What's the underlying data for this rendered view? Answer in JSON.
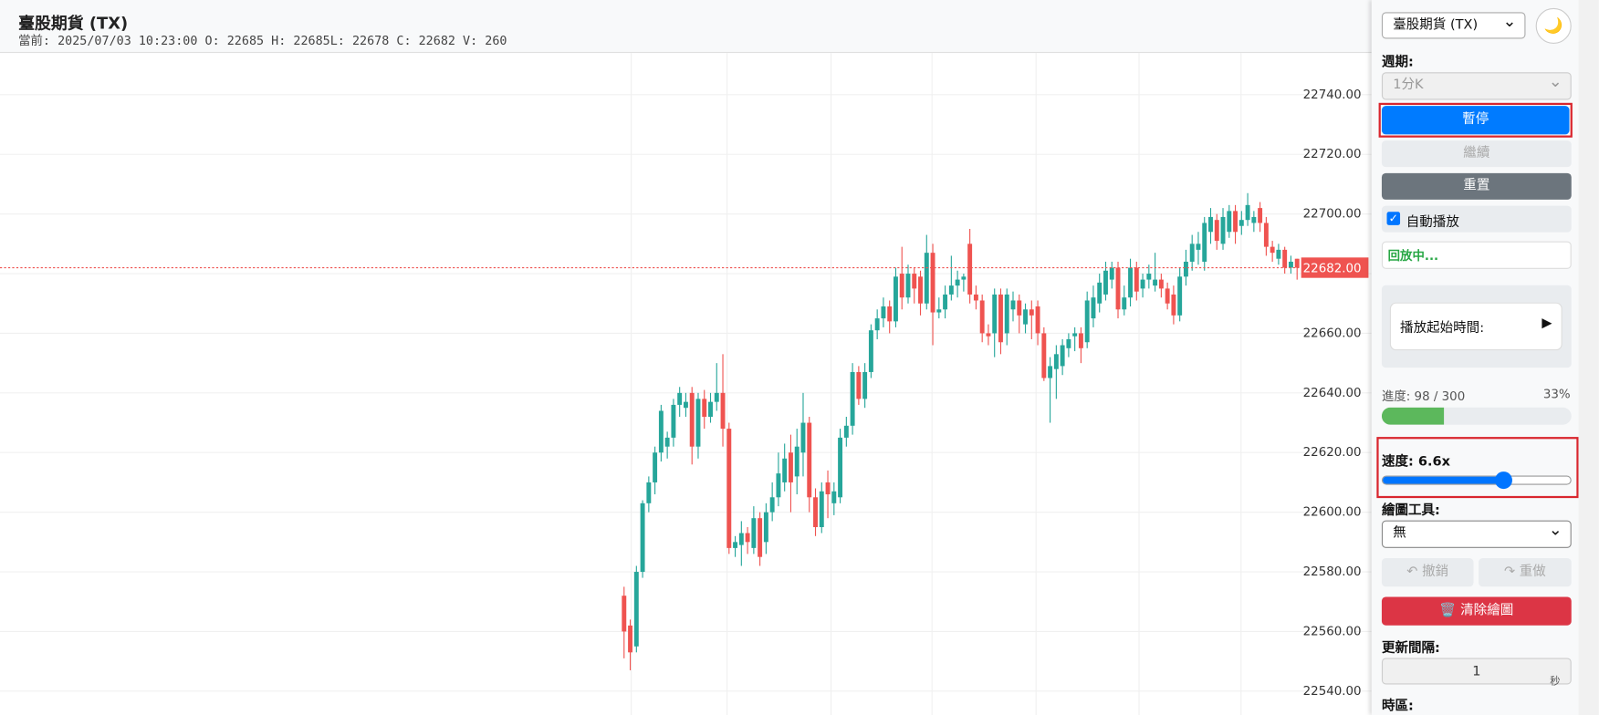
{
  "header": {
    "title": "臺股期貨 (TX)",
    "info": "當前: 2025/07/03 10:23:00 O: 22685 H: 22685L: 22678 C: 22682 V: 260"
  },
  "chart_data": {
    "type": "candlestick",
    "up_color": "#26a69a",
    "down_color": "#ef5350",
    "grid": true,
    "ylim": [
      22532,
      22754
    ],
    "yticks": [
      {
        "value": 22540,
        "label": "22540.00"
      },
      {
        "value": 22560,
        "label": "22560.00"
      },
      {
        "value": 22580,
        "label": "22580.00"
      },
      {
        "value": 22600,
        "label": "22600.00"
      },
      {
        "value": 22620,
        "label": "22620.00"
      },
      {
        "value": 22640,
        "label": "22640.00"
      },
      {
        "value": 22660,
        "label": "22660.00"
      },
      {
        "value": 22680,
        "label": "22680.00"
      },
      {
        "value": 22700,
        "label": "22700.00"
      },
      {
        "value": 22720,
        "label": "22720.00"
      },
      {
        "value": 22740,
        "label": "22740.00"
      }
    ],
    "last_price": 22682,
    "last_price_label": "22682.00",
    "ohlc": [
      [
        22572,
        22575,
        22551,
        22560
      ],
      [
        22562,
        22564,
        22547,
        22553
      ],
      [
        22555,
        22582,
        22553,
        22580
      ],
      [
        22580,
        22604,
        22578,
        22603
      ],
      [
        22603,
        22612,
        22600,
        22610
      ],
      [
        22610,
        22622,
        22606,
        22620
      ],
      [
        22620,
        22636,
        22617,
        22634
      ],
      [
        22622,
        22627,
        22618,
        22625
      ],
      [
        22625,
        22638,
        22622,
        22636
      ],
      [
        22636,
        22642,
        22632,
        22640
      ],
      [
        22635,
        22640,
        22632,
        22637
      ],
      [
        22640,
        22642,
        22616,
        22622
      ],
      [
        22622,
        22640,
        22618,
        22638
      ],
      [
        22638,
        22641,
        22628,
        22632
      ],
      [
        22632,
        22640,
        22630,
        22637
      ],
      [
        22637,
        22650,
        22634,
        22640
      ],
      [
        22640,
        22653,
        22622,
        22628
      ],
      [
        22628,
        22630,
        22586,
        22588
      ],
      [
        22588,
        22592,
        22585,
        22590
      ],
      [
        22589,
        22597,
        22582,
        22593
      ],
      [
        22593,
        22595,
        22586,
        22590
      ],
      [
        22588,
        22602,
        22586,
        22598
      ],
      [
        22598,
        22600,
        22582,
        22585
      ],
      [
        22590,
        22603,
        22586,
        22600
      ],
      [
        22600,
        22610,
        22597,
        22605
      ],
      [
        22605,
        22620,
        22602,
        22613
      ],
      [
        22610,
        22623,
        22607,
        22618
      ],
      [
        22620,
        22626,
        22600,
        22610
      ],
      [
        22612,
        22628,
        22606,
        22622
      ],
      [
        22620,
        22640,
        22612,
        22630
      ],
      [
        22630,
        22632,
        22600,
        22605
      ],
      [
        22605,
        22608,
        22592,
        22595
      ],
      [
        22595,
        22610,
        22593,
        22607
      ],
      [
        22610,
        22614,
        22598,
        22606
      ],
      [
        22603,
        22610,
        22599,
        22607
      ],
      [
        22605,
        22628,
        22603,
        22625
      ],
      [
        22625,
        22632,
        22622,
        22629
      ],
      [
        22629,
        22650,
        22626,
        22647
      ],
      [
        22647,
        22649,
        22636,
        22638
      ],
      [
        22638,
        22650,
        22635,
        22647
      ],
      [
        22647,
        22663,
        22645,
        22661
      ],
      [
        22661,
        22668,
        22658,
        22665
      ],
      [
        22665,
        22672,
        22662,
        22669
      ],
      [
        22669,
        22671,
        22660,
        22664
      ],
      [
        22664,
        22682,
        22662,
        22679
      ],
      [
        22680,
        22689,
        22668,
        22672
      ],
      [
        22672,
        22683,
        22670,
        22680
      ],
      [
        22680,
        22682,
        22670,
        22675
      ],
      [
        22679,
        22681,
        22666,
        22670
      ],
      [
        22670,
        22693,
        22668,
        22687
      ],
      [
        22687,
        22690,
        22656,
        22667
      ],
      [
        22667,
        22672,
        22665,
        22668
      ],
      [
        22668,
        22676,
        22665,
        22673
      ],
      [
        22673,
        22686,
        22671,
        22676
      ],
      [
        22676,
        22681,
        22672,
        22678
      ],
      [
        22678,
        22680,
        22674,
        22679
      ],
      [
        22690,
        22695,
        22670,
        22673
      ],
      [
        22673,
        22676,
        22668,
        22671
      ],
      [
        22671,
        22673,
        22657,
        22660
      ],
      [
        22660,
        22663,
        22656,
        22659
      ],
      [
        22660,
        22675,
        22652,
        22673
      ],
      [
        22673,
        22675,
        22653,
        22657
      ],
      [
        22660,
        22675,
        22656,
        22673
      ],
      [
        22668,
        22674,
        22664,
        22671
      ],
      [
        22671,
        22673,
        22660,
        22666
      ],
      [
        22663,
        22670,
        22660,
        22668
      ],
      [
        22668,
        22671,
        22658,
        22666
      ],
      [
        22669,
        22671,
        22656,
        22660
      ],
      [
        22660,
        22662,
        22644,
        22645
      ],
      [
        22645,
        22652,
        22630,
        22649
      ],
      [
        22648,
        22656,
        22638,
        22653
      ],
      [
        22649,
        22658,
        22646,
        22656
      ],
      [
        22655,
        22660,
        22652,
        22658
      ],
      [
        22659,
        22662,
        22654,
        22660
      ],
      [
        22660,
        22662,
        22650,
        22655
      ],
      [
        22657,
        22674,
        22655,
        22671
      ],
      [
        22665,
        22676,
        22662,
        22672
      ],
      [
        22670,
        22680,
        22667,
        22677
      ],
      [
        22673,
        22684,
        22671,
        22681
      ],
      [
        22678,
        22684,
        22675,
        22682
      ],
      [
        22682,
        22684,
        22665,
        22668
      ],
      [
        22668,
        22676,
        22666,
        22672
      ],
      [
        22672,
        22685,
        22669,
        22682
      ],
      [
        22682,
        22684,
        22671,
        22674
      ],
      [
        22675,
        22680,
        22672,
        22678
      ],
      [
        22678,
        22683,
        22675,
        22680
      ],
      [
        22676,
        22687,
        22674,
        22678
      ],
      [
        22678,
        22680,
        22672,
        22675
      ],
      [
        22675,
        22677,
        22668,
        22670
      ],
      [
        22673,
        22676,
        22663,
        22666
      ],
      [
        22666,
        22682,
        22664,
        22679
      ],
      [
        22679,
        22688,
        22676,
        22684
      ],
      [
        22684,
        22693,
        22681,
        22690
      ],
      [
        22688,
        22694,
        22683,
        22690
      ],
      [
        22684,
        22699,
        22681,
        22697
      ],
      [
        22694,
        22702,
        22690,
        22699
      ],
      [
        22698,
        22700,
        22688,
        22691
      ],
      [
        22690,
        22702,
        22688,
        22699
      ],
      [
        22694,
        22703,
        22692,
        22701
      ],
      [
        22701,
        22703,
        22690,
        22694
      ],
      [
        22696,
        22701,
        22693,
        22698
      ],
      [
        22698,
        22707,
        22696,
        22703
      ],
      [
        22697,
        22701,
        22694,
        22699
      ],
      [
        22702,
        22704,
        22694,
        22697
      ],
      [
        22697,
        22699,
        22686,
        22689
      ],
      [
        22689,
        22691,
        22684,
        22687
      ],
      [
        22685,
        22690,
        22683,
        22688
      ],
      [
        22688,
        22689,
        22680,
        22682
      ],
      [
        22682,
        22686,
        22680,
        22684
      ],
      [
        22685,
        22685,
        22678,
        22682
      ]
    ]
  },
  "sidebar": {
    "symbol": "臺股期貨 (TX)",
    "theme_icon": "🌙",
    "period_label": "週期:",
    "period": "1分K",
    "pause": "暫停",
    "resume": "繼續",
    "reset": "重置",
    "autoplay": "自動播放",
    "status": "回放中...",
    "start_time_label": "播放起始時間:",
    "start_icon": "▶",
    "progress": {
      "label": "進度: 98 / 300",
      "percent_label": "33%",
      "current": 98,
      "total": 300
    },
    "speed_label": "速度: 6.6x",
    "draw_tools_label": "繪圖工具:",
    "draw_tool": "無",
    "undo": "↶ 撤銷",
    "redo": "↷ 重做",
    "clear": "🗑️ 清除繪圖",
    "interval_label": "更新間隔:",
    "interval": "1",
    "interval_unit": "秒",
    "timezone_label": "時區:"
  }
}
